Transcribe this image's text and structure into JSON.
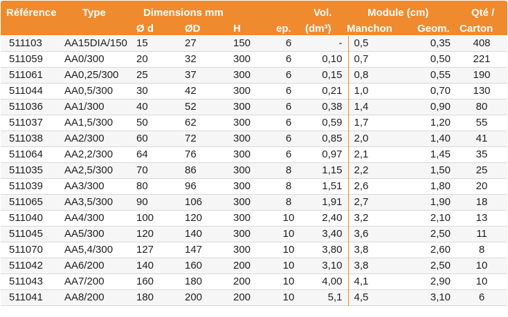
{
  "header": {
    "reference": "Référence",
    "type": "Type",
    "dimensions": "Dimensions mm",
    "od": "Ø d",
    "oD": "ØD",
    "h": "H",
    "ep": "ep.",
    "vol1": "Vol.",
    "vol2": "(dm³)",
    "module": "Module (cm)",
    "manchon": "Manchon",
    "geom": "Geom.",
    "qte1": "Qté /",
    "qte2": "Carton"
  },
  "colors": {
    "accent": "#f08a2e"
  },
  "rows": [
    {
      "ref": "511103",
      "type": "AA15DIA/150",
      "d": "15",
      "D": "27",
      "H": "150",
      "ep": "6",
      "vol": "-",
      "man": "0,5",
      "geo": "0,35",
      "qte": "408"
    },
    {
      "ref": "511059",
      "type": "AA0/300",
      "d": "20",
      "D": "32",
      "H": "300",
      "ep": "6",
      "vol": "0,10",
      "man": "0,7",
      "geo": "0,50",
      "qte": "221"
    },
    {
      "ref": "511061",
      "type": "AA0,25/300",
      "d": "25",
      "D": "37",
      "H": "300",
      "ep": "6",
      "vol": "0,15",
      "man": "0,8",
      "geo": "0,55",
      "qte": "190"
    },
    {
      "ref": "511044",
      "type": "AA0,5/300",
      "d": "30",
      "D": "42",
      "H": "300",
      "ep": "6",
      "vol": "0,21",
      "man": "1,0",
      "geo": "0,70",
      "qte": "130"
    },
    {
      "ref": "511036",
      "type": "AA1/300",
      "d": "40",
      "D": "52",
      "H": "300",
      "ep": "6",
      "vol": "0,38",
      "man": "1,4",
      "geo": "0,90",
      "qte": "80"
    },
    {
      "ref": "511037",
      "type": "AA1,5/300",
      "d": "50",
      "D": "62",
      "H": "300",
      "ep": "6",
      "vol": "0,59",
      "man": "1,7",
      "geo": "1,20",
      "qte": "55"
    },
    {
      "ref": "511038",
      "type": "AA2/300",
      "d": "60",
      "D": "72",
      "H": "300",
      "ep": "6",
      "vol": "0,85",
      "man": "2,0",
      "geo": "1,40",
      "qte": "41"
    },
    {
      "ref": "511064",
      "type": "AA2,2/300",
      "d": "64",
      "D": "76",
      "H": "300",
      "ep": "6",
      "vol": "0,97",
      "man": "2,1",
      "geo": "1,45",
      "qte": "35"
    },
    {
      "ref": "511035",
      "type": "AA2,5/300",
      "d": "70",
      "D": "86",
      "H": "300",
      "ep": "8",
      "vol": "1,15",
      "man": "2,2",
      "geo": "1,50",
      "qte": "25"
    },
    {
      "ref": "511039",
      "type": "AA3/300",
      "d": "80",
      "D": "96",
      "H": "300",
      "ep": "8",
      "vol": "1,51",
      "man": "2,6",
      "geo": "1,80",
      "qte": "20"
    },
    {
      "ref": "511065",
      "type": "AA3,5/300",
      "d": "90",
      "D": "106",
      "H": "300",
      "ep": "8",
      "vol": "1,91",
      "man": "2,7",
      "geo": "1,90",
      "qte": "18"
    },
    {
      "ref": "511040",
      "type": "AA4/300",
      "d": "100",
      "D": "120",
      "H": "300",
      "ep": "10",
      "vol": "2,40",
      "man": "3,2",
      "geo": "2,10",
      "qte": "13"
    },
    {
      "ref": "511045",
      "type": "AA5/300",
      "d": "120",
      "D": "140",
      "H": "300",
      "ep": "10",
      "vol": "3,40",
      "man": "3,6",
      "geo": "2,50",
      "qte": "11"
    },
    {
      "ref": "511070",
      "type": "AA5,4/300",
      "d": "127",
      "D": "147",
      "H": "300",
      "ep": "10",
      "vol": "3,80",
      "man": "3,8",
      "geo": "2,60",
      "qte": "8"
    },
    {
      "ref": "511042",
      "type": "AA6/200",
      "d": "140",
      "D": "160",
      "H": "200",
      "ep": "10",
      "vol": "3,10",
      "man": "3,8",
      "geo": "2,50",
      "qte": "10"
    },
    {
      "ref": "511043",
      "type": "AA7/200",
      "d": "160",
      "D": "180",
      "H": "200",
      "ep": "10",
      "vol": "4,00",
      "man": "4,1",
      "geo": "2,90",
      "qte": "10"
    },
    {
      "ref": "511041",
      "type": "AA8/200",
      "d": "180",
      "D": "200",
      "H": "200",
      "ep": "10",
      "vol": "5,1",
      "man": "4,5",
      "geo": "3,10",
      "qte": "6"
    }
  ]
}
